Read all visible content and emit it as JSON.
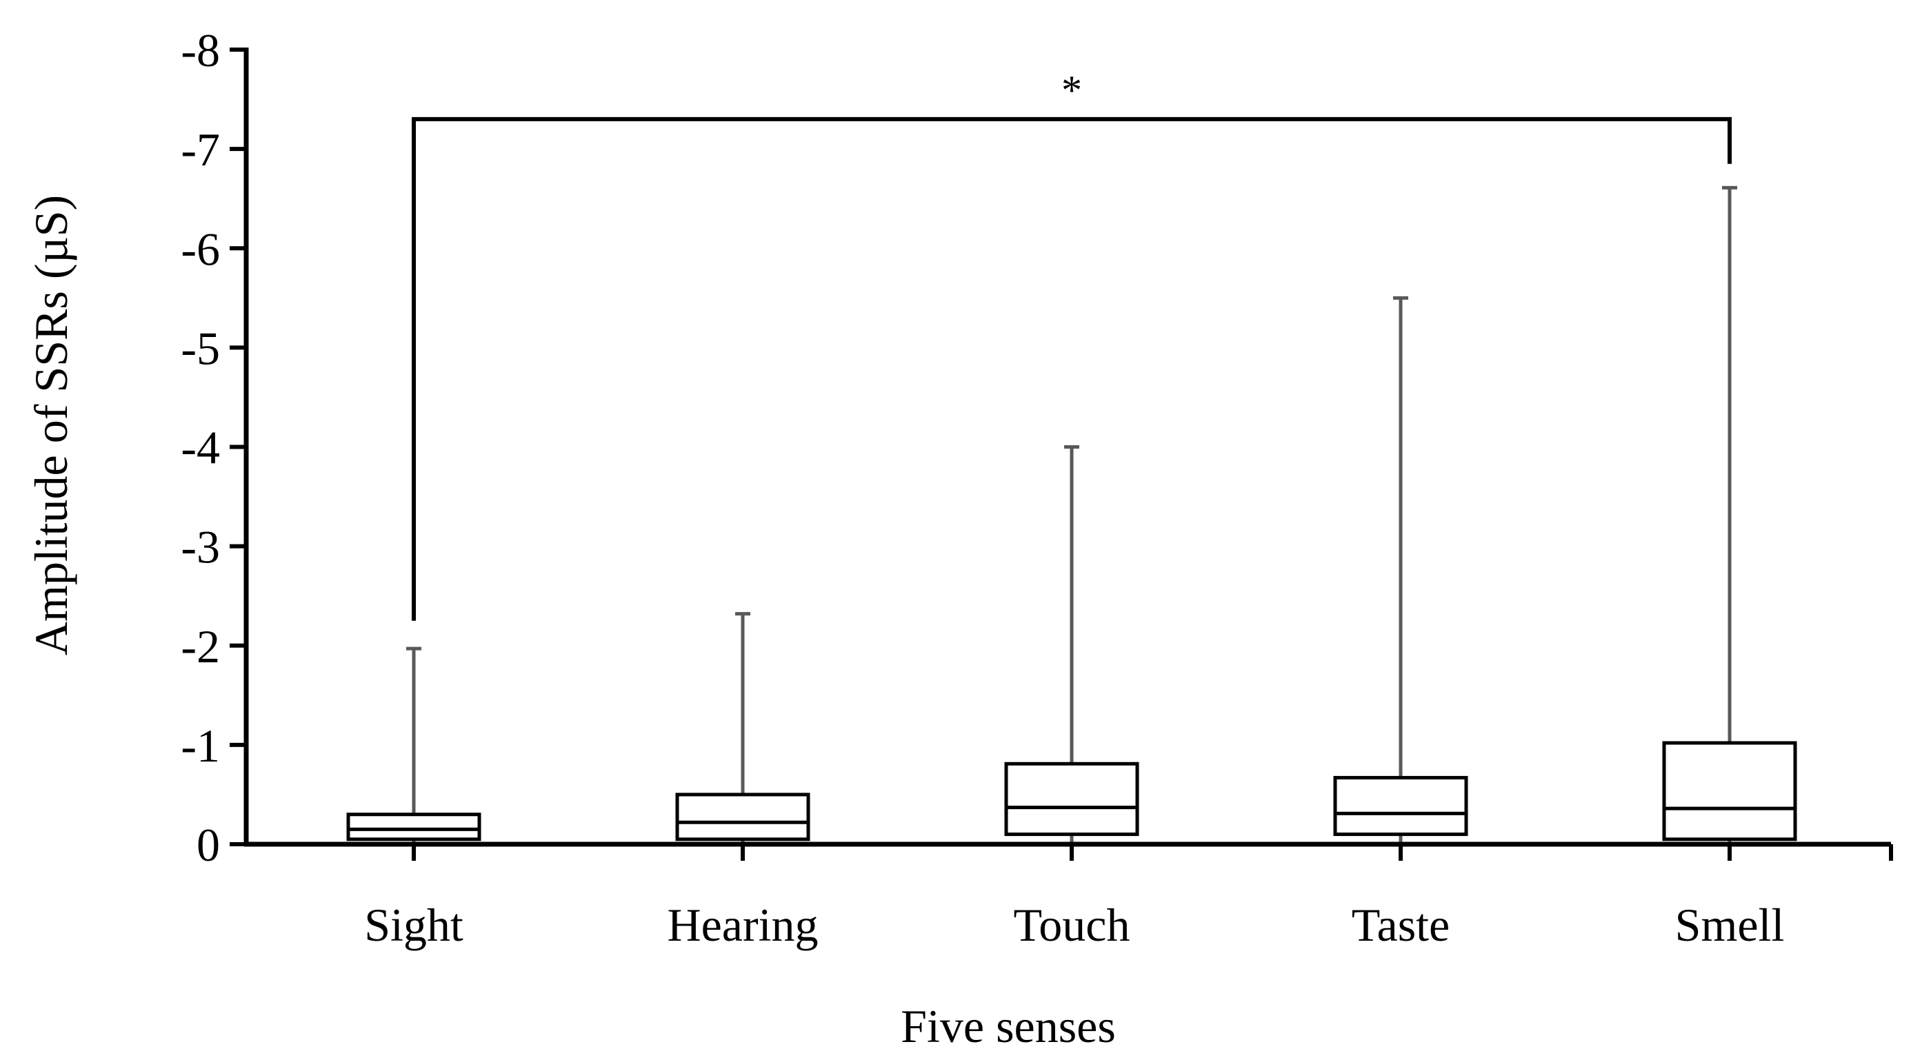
{
  "chart_data": {
    "type": "boxplot",
    "xlabel": "Five senses",
    "ylabel": "Amplitude of SSRs (µS)",
    "ylim": [
      0,
      8
    ],
    "y_inverted": true,
    "yticks": [
      {
        "value": 0,
        "label": "0"
      },
      {
        "value": 1,
        "label": "-1"
      },
      {
        "value": 2,
        "label": "-2"
      },
      {
        "value": 3,
        "label": "-3"
      },
      {
        "value": 4,
        "label": "-4"
      },
      {
        "value": 5,
        "label": "-5"
      },
      {
        "value": 6,
        "label": "-6"
      },
      {
        "value": 7,
        "label": "-7"
      },
      {
        "value": 8,
        "label": "-8"
      }
    ],
    "categories": [
      "Sight",
      "Hearing",
      "Touch",
      "Taste",
      "Smell"
    ],
    "boxes": [
      {
        "name": "Sight",
        "q1": 0.05,
        "median": 0.15,
        "q3": 0.3,
        "whisker_high": 1.97
      },
      {
        "name": "Hearing",
        "q1": 0.05,
        "median": 0.22,
        "q3": 0.5,
        "whisker_high": 2.32
      },
      {
        "name": "Touch",
        "q1": 0.1,
        "median": 0.37,
        "q3": 0.81,
        "whisker_high": 4.0
      },
      {
        "name": "Taste",
        "q1": 0.1,
        "median": 0.31,
        "q3": 0.67,
        "whisker_high": 5.5
      },
      {
        "name": "Smell",
        "q1": 0.05,
        "median": 0.36,
        "q3": 1.02,
        "whisker_high": 6.61
      }
    ],
    "significance": {
      "from": "Sight",
      "to": "Smell",
      "label": "*",
      "bar_level": 7.3,
      "left_tick_end": 2.25,
      "right_tick_end": 6.85
    },
    "colors": {
      "axis": "#000000",
      "box": "#000000",
      "whisker": "#595959",
      "bracket": "#000000"
    }
  }
}
